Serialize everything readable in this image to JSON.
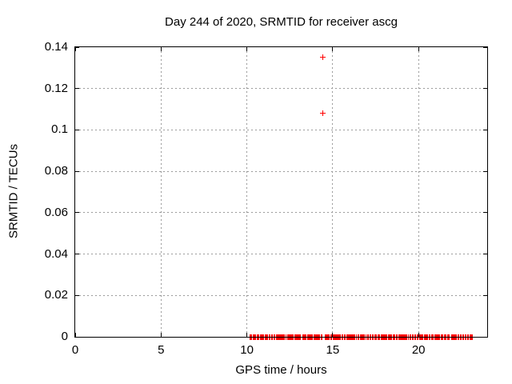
{
  "chart_data": {
    "type": "scatter",
    "title": "Day 244 of 2020, SRMTID for receiver ascg",
    "xlabel": "GPS time / hours",
    "ylabel": "SRMTID / TECUs",
    "xlim": [
      0,
      24
    ],
    "ylim": [
      0,
      0.14
    ],
    "xticks": [
      0,
      5,
      10,
      15,
      20
    ],
    "xtick_labels": [
      "0",
      "5",
      "10",
      "15",
      "20"
    ],
    "yticks": [
      0,
      0.02,
      0.04,
      0.06,
      0.08,
      0.1,
      0.12,
      0.14
    ],
    "ytick_labels": [
      "0",
      "0.02",
      "0.04",
      "0.06",
      "0.08",
      "0.1",
      "0.12",
      "0.14"
    ],
    "grid": true,
    "legend": "none",
    "marker": "plus",
    "marker_color": "#ff0000",
    "grid_color": "#9a9a9a",
    "border_color": "#000000",
    "series": [
      {
        "name": "SRMTID",
        "outlier_points": [
          [
            14.4,
            0.135
          ],
          [
            14.4,
            0.108
          ]
        ],
        "baseline_y": 0,
        "baseline_point_step_hours": 0.05,
        "baseline_segments_hours": [
          [
            10.19,
            10.29
          ],
          [
            10.38,
            10.47
          ],
          [
            10.53,
            10.58
          ],
          [
            10.67,
            10.96
          ],
          [
            11.05,
            11.14
          ],
          [
            11.23,
            11.28
          ],
          [
            11.37,
            11.42
          ],
          [
            11.51,
            11.61
          ],
          [
            11.7,
            12.26
          ],
          [
            12.35,
            12.68
          ],
          [
            12.77,
            13.14
          ],
          [
            13.24,
            13.43
          ],
          [
            13.52,
            13.8
          ],
          [
            13.89,
            14.36
          ],
          [
            14.55,
            14.78
          ],
          [
            14.87,
            14.92
          ],
          [
            15.01,
            15.57
          ],
          [
            15.66,
            15.71
          ],
          [
            15.8,
            16.36
          ],
          [
            16.46,
            16.5
          ],
          [
            16.6,
            16.92
          ],
          [
            17.02,
            17.06
          ],
          [
            17.16,
            17.2
          ],
          [
            17.3,
            17.34
          ],
          [
            17.43,
            17.53
          ],
          [
            17.62,
            17.71
          ],
          [
            17.81,
            18.14
          ],
          [
            18.23,
            18.42
          ],
          [
            18.51,
            18.6
          ],
          [
            18.7,
            18.74
          ],
          [
            18.83,
            19.39
          ],
          [
            19.49,
            19.53
          ],
          [
            19.63,
            19.67
          ],
          [
            19.77,
            19.81
          ],
          [
            19.91,
            19.95
          ],
          [
            20.05,
            20.23
          ],
          [
            20.33,
            20.51
          ],
          [
            20.61,
            20.65
          ],
          [
            20.75,
            20.84
          ],
          [
            20.93,
            21.21
          ],
          [
            21.31,
            21.4
          ],
          [
            21.49,
            21.59
          ],
          [
            21.68,
            21.77
          ],
          [
            21.91,
            22.19
          ],
          [
            22.28,
            22.33
          ],
          [
            22.42,
            22.47
          ],
          [
            22.56,
            22.61
          ],
          [
            22.7,
            22.75
          ],
          [
            22.84,
            22.89
          ],
          [
            22.98,
            23.12
          ]
        ]
      }
    ]
  }
}
